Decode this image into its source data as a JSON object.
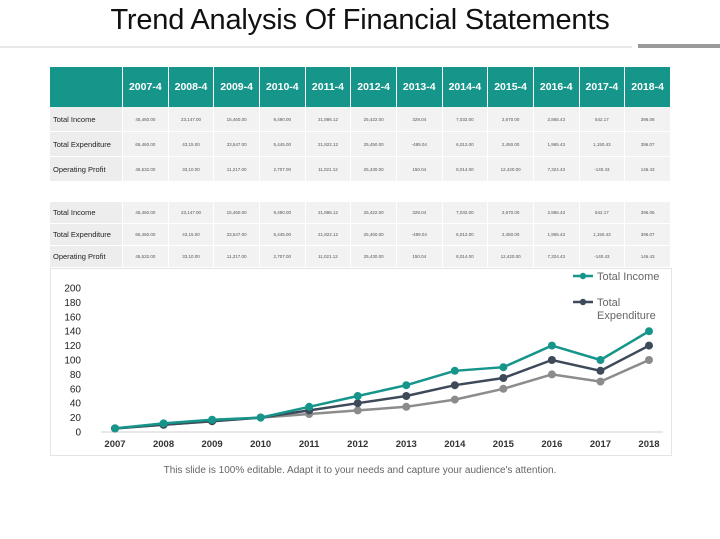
{
  "title": "Trend Analysis Of Financial Statements",
  "footer": "This slide is 100% editable. Adapt it to your needs and capture your audience's attention.",
  "colors": {
    "accent": "#16958a",
    "series_income": "#16958a",
    "series_expenditure": "#3e4a5a",
    "series_profit": "#8c8c8c"
  },
  "tables": [
    {
      "columns": [
        "2007-4",
        "2008-4",
        "2009-4",
        "2010-4",
        "2011-4",
        "2012-4",
        "2013-4",
        "2014-4",
        "2015-4",
        "2016-4",
        "2017-4",
        "2018-4"
      ],
      "rows": [
        {
          "label": "Total Income",
          "values": [
            "45,460.00",
            "23,147.00",
            "15,460.00",
            "9,490.00",
            "21,886.12",
            "25,422.00",
            "329.04",
            "7,032.00",
            "2,670.00",
            "2,865.43",
            "542.17",
            "396.06"
          ]
        },
        {
          "label": "Total Expenditure",
          "values": [
            "65,460.00",
            "43,15.00",
            "33,547.00",
            "5,445.00",
            "21,822.12",
            "25,450.00",
            "-489.04",
            "6,012.00",
            "2,450.00",
            "1,965.43",
            "1,150.43",
            "396.07"
          ]
        },
        {
          "label": "Operating Profit",
          "values": [
            "45,532.00",
            "33,10.00",
            "11,217.00",
            "2,707.00",
            "11,021.12",
            "25,430.00",
            "150.04",
            "8,014.00",
            "12,420.00",
            "7,324.43",
            "-140.43",
            "146.43"
          ]
        }
      ]
    },
    {
      "columns": [],
      "rows": [
        {
          "label": "Total Income",
          "values": [
            "45,460.00",
            "23,147.00",
            "15,460.00",
            "9,490.00",
            "21,886.12",
            "25,422.00",
            "329.04",
            "7,032.00",
            "2,670.00",
            "2,865.43",
            "542.17",
            "396.06"
          ]
        },
        {
          "label": "Total Expenditure",
          "values": [
            "65,460.00",
            "43,15.00",
            "33,547.00",
            "5,445.00",
            "21,822.12",
            "25,450.00",
            "-489.04",
            "6,012.00",
            "2,450.00",
            "1,965.43",
            "1,150.43",
            "396.07"
          ]
        },
        {
          "label": "Operating Profit",
          "values": [
            "45,532.00",
            "33,10.00",
            "11,217.00",
            "2,707.00",
            "11,021.12",
            "25,430.00",
            "150.04",
            "8,014.00",
            "12,420.00",
            "7,324.43",
            "-140.43",
            "146.43"
          ]
        }
      ]
    }
  ],
  "chart_data": {
    "type": "line",
    "x": [
      "2007",
      "2008",
      "2009",
      "2010",
      "2011",
      "2012",
      "2013",
      "2014",
      "2015",
      "2016",
      "2017",
      "2018"
    ],
    "yticks": [
      "0",
      "20",
      "40",
      "60",
      "80",
      "100",
      "120",
      "140",
      "160",
      "180",
      "200"
    ],
    "ylim": [
      0,
      200
    ],
    "grid": false,
    "legend_position": "top-right",
    "series": [
      {
        "name": "Total Income",
        "color": "#16958a",
        "values": [
          5,
          12,
          17,
          20,
          35,
          50,
          65,
          85,
          90,
          120,
          100,
          140
        ]
      },
      {
        "name": "Total Expenditure",
        "color": "#3e4a5a",
        "values": [
          5,
          10,
          15,
          20,
          30,
          40,
          50,
          65,
          75,
          100,
          85,
          120
        ]
      },
      {
        "name": "",
        "color": "#8c8c8c",
        "values": [
          5,
          10,
          15,
          20,
          25,
          30,
          35,
          45,
          60,
          80,
          70,
          100
        ]
      }
    ]
  }
}
